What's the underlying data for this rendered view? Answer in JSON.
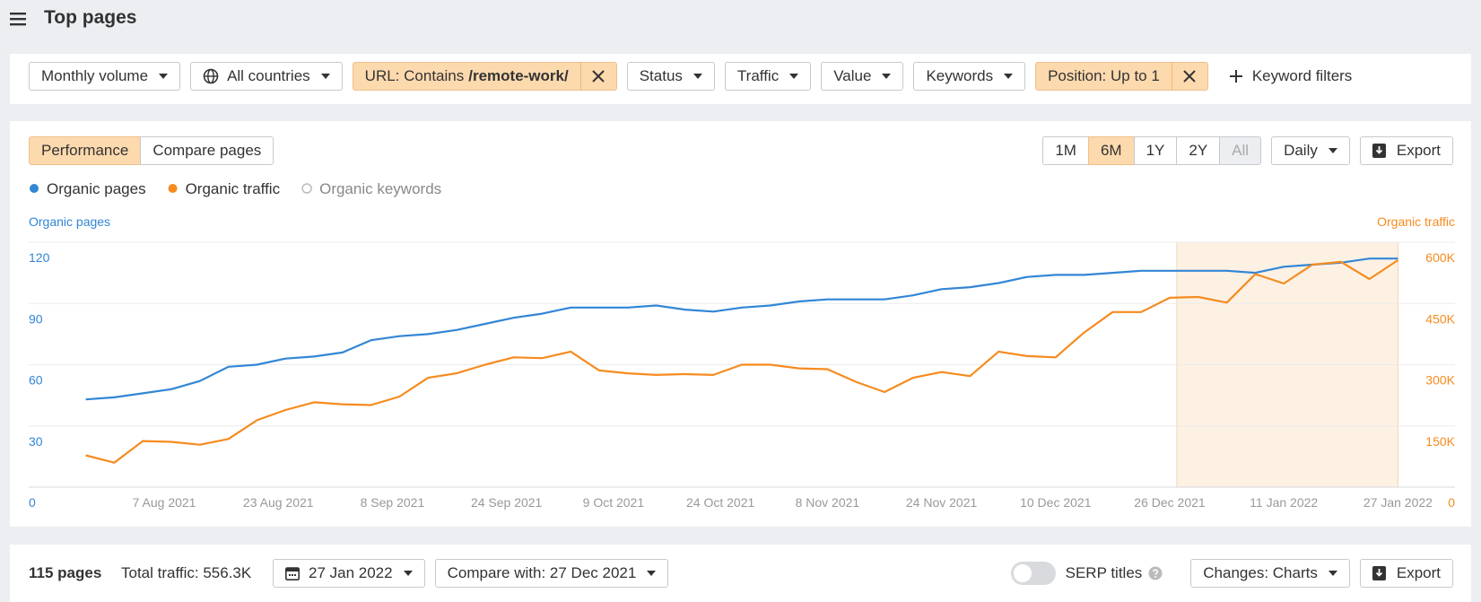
{
  "header": {
    "title": "Top pages"
  },
  "filters": [
    "Monthly volume",
    "All countries",
    {
      "label": "URL: Contains",
      "value": "/remote-work/"
    },
    "Status",
    "Traffic",
    "Value",
    "Keywords",
    "Position: Up to 1"
  ],
  "keyword_filters": "Keyword filters",
  "tabs": [
    "Performance",
    "Compare pages"
  ],
  "ranges": [
    "1M",
    "6M",
    "1Y",
    "2Y",
    "All"
  ],
  "interval": "Daily",
  "export": "Export",
  "chart_data": {
    "type": "line",
    "ylabel": "Organic pages",
    "y2label": "Organic traffic",
    "legend_inactive": "Organic keywords",
    "x": [
      "2021-07-27",
      "2021-07-31",
      "2021-08-04",
      "2021-08-08",
      "2021-08-12",
      "2021-08-16",
      "2021-08-20",
      "2021-08-24",
      "2021-08-28",
      "2021-09-01",
      "2021-09-05",
      "2021-09-09",
      "2021-09-13",
      "2021-09-17",
      "2021-09-21",
      "2021-09-25",
      "2021-09-29",
      "2021-10-03",
      "2021-10-07",
      "2021-10-11",
      "2021-10-15",
      "2021-10-19",
      "2021-10-23",
      "2021-10-27",
      "2021-10-31",
      "2021-11-04",
      "2021-11-08",
      "2021-11-12",
      "2021-11-16",
      "2021-11-20",
      "2021-11-24",
      "2021-11-28",
      "2021-12-02",
      "2021-12-06",
      "2021-12-10",
      "2021-12-14",
      "2021-12-18",
      "2021-12-22",
      "2021-12-26",
      "2021-12-30",
      "2022-01-03",
      "2022-01-07",
      "2022-01-11",
      "2022-01-15",
      "2022-01-19",
      "2022-01-23",
      "2022-01-27"
    ],
    "series": [
      {
        "name": "Organic pages",
        "color": "#3286d5",
        "values": [
          43,
          44,
          46,
          48,
          52,
          59,
          60,
          63,
          64,
          66,
          72,
          74,
          75,
          77,
          80,
          83,
          85,
          88,
          88,
          88,
          89,
          87,
          86,
          88,
          89,
          91,
          92,
          92,
          92,
          94,
          97,
          98,
          100,
          103,
          104,
          104,
          105,
          106,
          106,
          106,
          106,
          105,
          108,
          109,
          110,
          112,
          112
        ]
      },
      {
        "name": "Organic traffic",
        "color": "#f68b1f",
        "axis": "y2",
        "values": [
          78000,
          60000,
          113000,
          111000,
          104000,
          118000,
          164000,
          189000,
          208000,
          203000,
          201000,
          222000,
          268000,
          279000,
          300000,
          318000,
          316000,
          332000,
          286000,
          279000,
          275000,
          277000,
          275000,
          300000,
          300000,
          291000,
          289000,
          258000,
          233000,
          268000,
          282000,
          272000,
          332000,
          321000,
          318000,
          379000,
          429000,
          429000,
          464000,
          466000,
          452000,
          522000,
          499000,
          545000,
          552000,
          510000,
          556000
        ]
      }
    ],
    "xlim": [
      "2021-07-19",
      "2022-02-04"
    ],
    "xticks": [
      {
        "value": "2021-08-07",
        "label": "7 Aug 2021"
      },
      {
        "value": "2021-08-23",
        "label": "23 Aug 2021"
      },
      {
        "value": "2021-09-08",
        "label": "8 Sep 2021"
      },
      {
        "value": "2021-09-24",
        "label": "24 Sep 2021"
      },
      {
        "value": "2021-10-09",
        "label": "9 Oct 2021"
      },
      {
        "value": "2021-10-24",
        "label": "24 Oct 2021"
      },
      {
        "value": "2021-11-08",
        "label": "8 Nov 2021"
      },
      {
        "value": "2021-11-24",
        "label": "24 Nov 2021"
      },
      {
        "value": "2021-12-10",
        "label": "10 Dec 2021"
      },
      {
        "value": "2021-12-26",
        "label": "26 Dec 2021"
      },
      {
        "value": "2022-01-11",
        "label": "11 Jan 2022"
      },
      {
        "value": "2022-01-27",
        "label": "27 Jan 2022"
      }
    ],
    "ylim": [
      0,
      120
    ],
    "yticks": [
      0,
      30,
      60,
      90,
      120
    ],
    "y2lim": [
      0,
      600000
    ],
    "y2ticks": [
      0,
      {
        "value": 150000,
        "label": "150K"
      },
      {
        "value": 300000,
        "label": "300K"
      },
      {
        "value": 450000,
        "label": "450K"
      },
      {
        "value": 600000,
        "label": "600K"
      }
    ],
    "highlight": [
      "2021-12-27",
      "2022-01-27"
    ],
    "grid": true
  },
  "bottom": {
    "count": "115 pages",
    "total": "Total traffic: 556.3K",
    "date": "27 Jan 2022",
    "compare": "Compare with: 27 Dec 2021",
    "serp": "SERP titles",
    "changes": "Changes: Charts",
    "export": "Export"
  }
}
